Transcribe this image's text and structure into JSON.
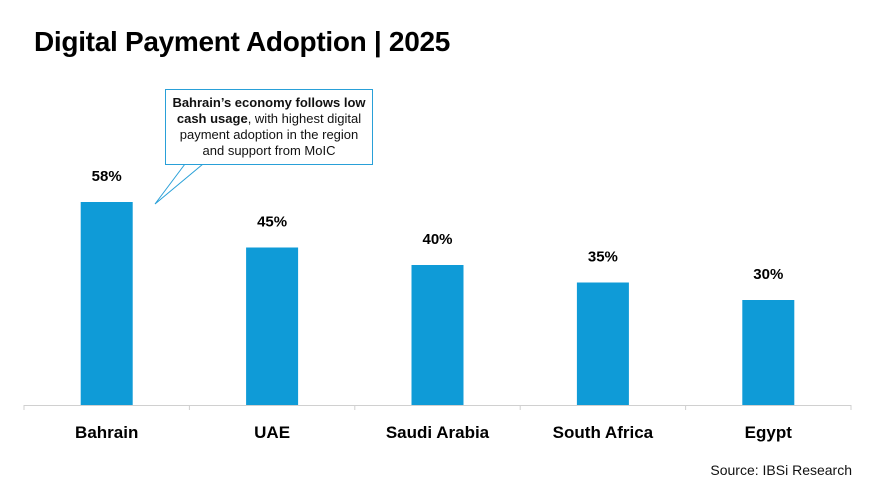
{
  "chart_data": {
    "type": "bar",
    "title": "Digital Payment Adoption | 2025",
    "categories": [
      "Bahrain",
      "UAE",
      "Saudi Arabia",
      "South Africa",
      "Egypt"
    ],
    "values": [
      58,
      45,
      40,
      35,
      30
    ],
    "value_labels": [
      "58%",
      "45%",
      "40%",
      "35%",
      "30%"
    ],
    "xlabel": "",
    "ylabel": "",
    "ylim": [
      0,
      60
    ],
    "grid": false,
    "legend": "none",
    "bar_color": "#0f9bd7",
    "annotation": {
      "target": "Bahrain",
      "bold_text": "Bahrain’s economy follows low cash usage",
      "text": ", with highest digital payment adoption in the region and support from MoIC",
      "border_color": "#29a0d8"
    },
    "source": "Source: IBSi Research"
  }
}
